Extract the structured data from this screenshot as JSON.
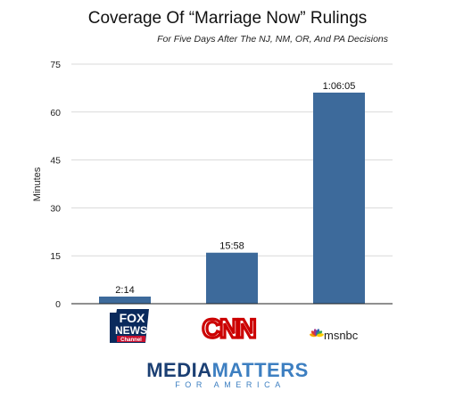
{
  "chart_data": {
    "type": "bar",
    "title": "Coverage Of “Marriage Now” Rulings",
    "subtitle": "For Five Days After The NJ, NM, OR, And PA Decisions",
    "ylabel": "Minutes",
    "ylim": [
      0,
      75
    ],
    "yticks": [
      0,
      15,
      30,
      45,
      60,
      75
    ],
    "grid": true,
    "bar_color": "#3d6a9b",
    "categories": [
      "FOX NEWS Channel",
      "CNN",
      "msnbc"
    ],
    "values": [
      2.233,
      15.967,
      66.083
    ],
    "data_labels": [
      "2:14",
      "15:58",
      "1:06:05"
    ]
  },
  "logos": {
    "fox": {
      "line1": "FOX",
      "line2": "NEWS",
      "line3": "Channel"
    },
    "cnn": {
      "text": "CNN",
      "color": "#cc0000"
    },
    "msnbc": {
      "text": "msnbc",
      "peacock_colors": [
        "#f6a400",
        "#e03c31",
        "#a1348b",
        "#3064b1",
        "#37a553",
        "#ffcc00"
      ]
    }
  },
  "footer": {
    "brand_part1": "MEDIA",
    "brand_part2": "MATTERS",
    "tagline": "FOR AMERICA",
    "brand_color": "#1b3f73",
    "accent_color": "#3d7fc1"
  }
}
